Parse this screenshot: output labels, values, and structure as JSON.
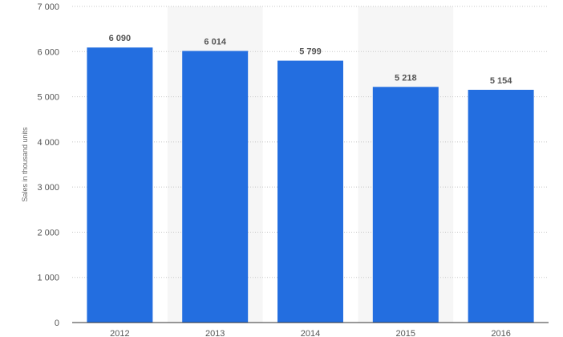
{
  "chart_data": {
    "type": "bar",
    "title": "",
    "xlabel": "",
    "ylabel": "Sales in thousand units",
    "categories": [
      "2012",
      "2013",
      "2014",
      "2015",
      "2016"
    ],
    "values": [
      6090,
      6014,
      5799,
      5218,
      5154
    ],
    "data_labels": [
      "6 090",
      "6 014",
      "5 799",
      "5 218",
      "5 154"
    ],
    "ylim": [
      0,
      7000
    ],
    "yticks": [
      0,
      1000,
      2000,
      3000,
      4000,
      5000,
      6000,
      7000
    ],
    "ytick_labels": [
      "0",
      "1 000",
      "2 000",
      "3 000",
      "4 000",
      "5 000",
      "6 000",
      "7 000"
    ],
    "grid": true,
    "legend": "none",
    "colors": {
      "bar": "#236ee0",
      "band": "#f6f6f6"
    }
  }
}
